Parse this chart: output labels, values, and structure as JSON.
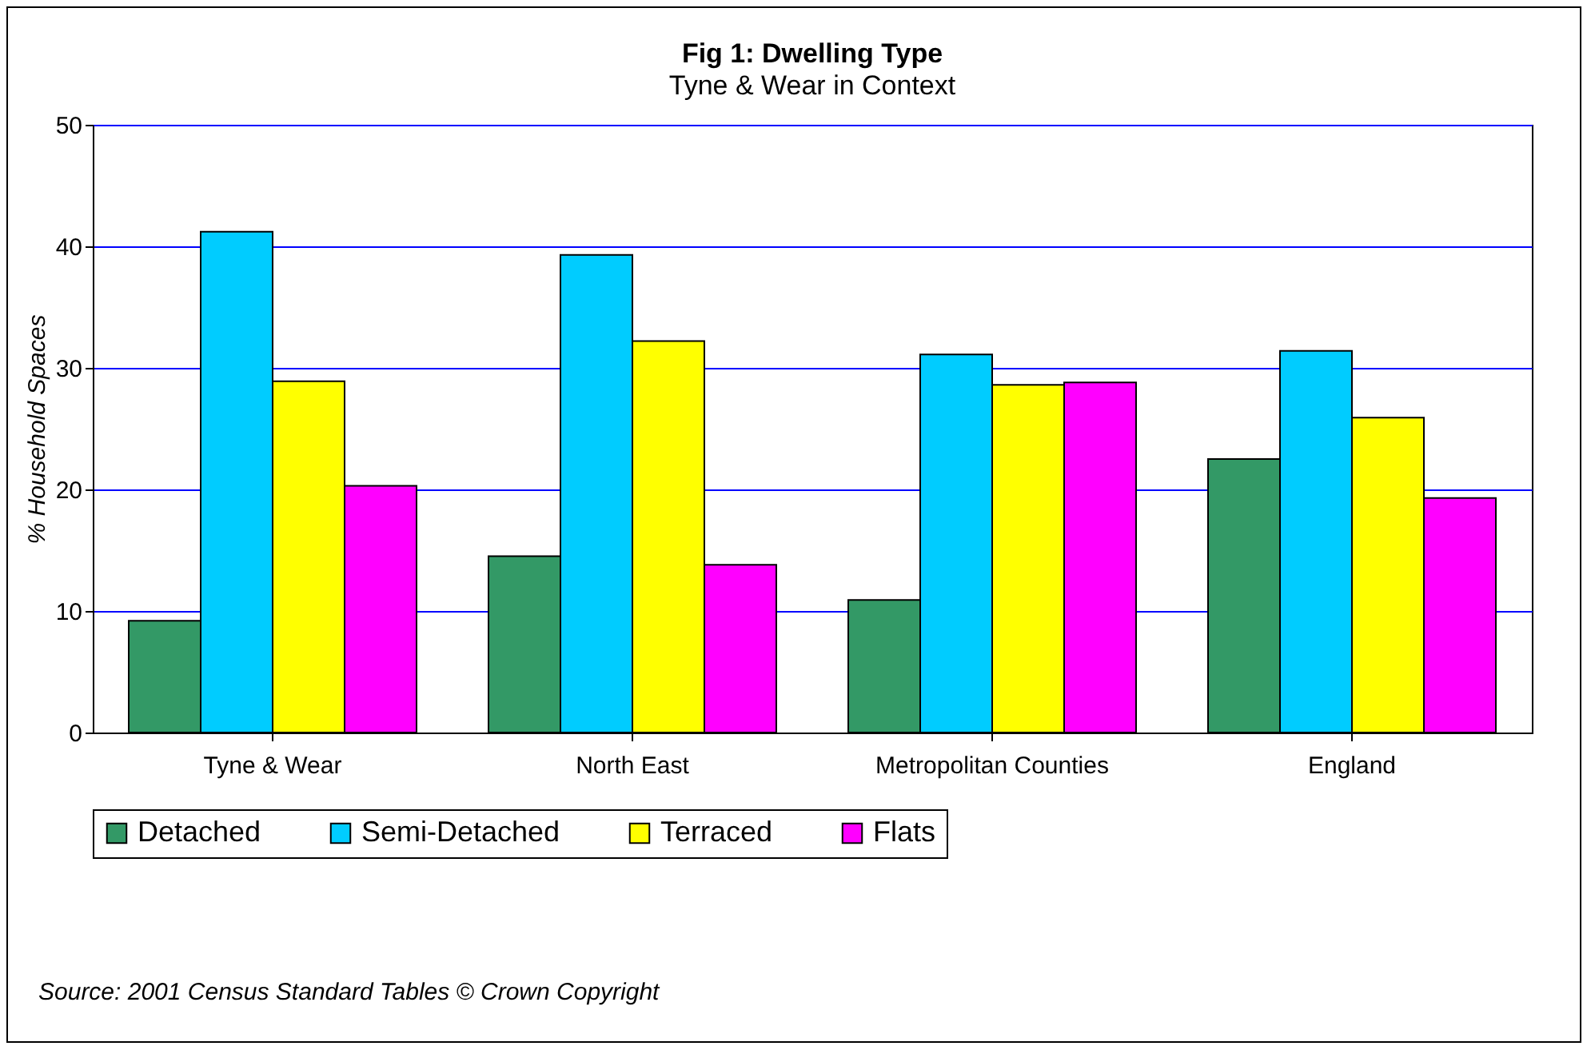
{
  "chart_data": {
    "type": "bar",
    "title": "Fig 1: Dwelling Type",
    "subtitle": "Tyne & Wear in Context",
    "ylabel": "% Household Spaces",
    "categories": [
      "Tyne & Wear",
      "North East",
      "Metropolitan Counties",
      "England"
    ],
    "series": [
      {
        "name": "Detached",
        "color": "#339966",
        "values": [
          9.2,
          14.5,
          10.9,
          22.5
        ]
      },
      {
        "name": "Semi-Detached",
        "color": "#00ccff",
        "values": [
          41.2,
          39.3,
          31.1,
          31.4
        ]
      },
      {
        "name": "Terraced",
        "color": "#ffff00",
        "values": [
          28.9,
          32.2,
          28.6,
          25.9
        ]
      },
      {
        "name": "Flats",
        "color": "#ff00ff",
        "values": [
          20.3,
          13.8,
          28.8,
          19.3
        ]
      }
    ],
    "ylim": [
      0,
      50
    ],
    "yticks": [
      0,
      10,
      20,
      30,
      40,
      50
    ],
    "grid": "y",
    "legend": "bottom",
    "annotations": [
      "Source: 2001 Census Standard Tables © Crown Copyright"
    ]
  }
}
